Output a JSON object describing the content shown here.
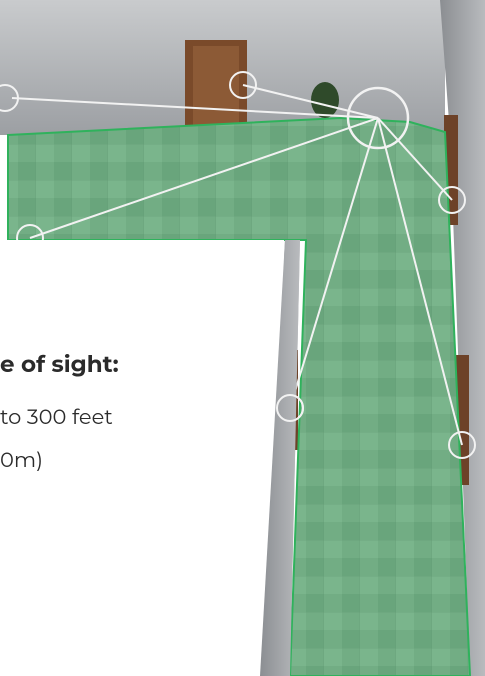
{
  "text": {
    "heading": "e of sight:",
    "line1": "to 300 feet",
    "line2": "0m)"
  }
}
